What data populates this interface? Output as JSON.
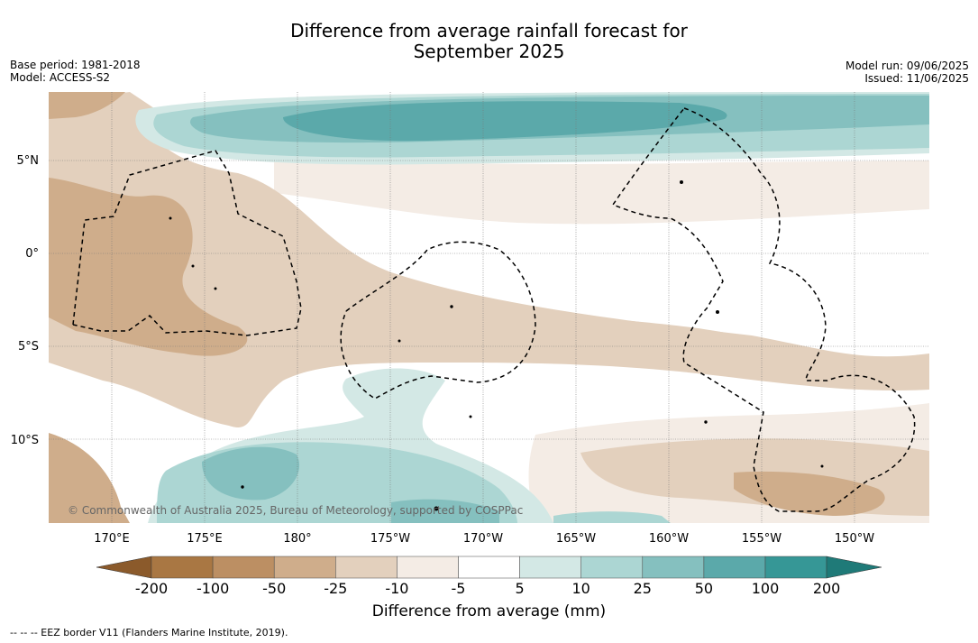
{
  "title": {
    "line1": "Difference from average rainfall forecast for",
    "line2": "September 2025"
  },
  "meta_left": {
    "base_period": "Base period: 1981-2018",
    "model": "Model: ACCESS-S2"
  },
  "meta_right": {
    "model_run": "Model run: 09/06/2025",
    "issued": "Issued: 11/06/2025"
  },
  "map": {
    "lat_labels": [
      "5°N",
      "0°",
      "5°S",
      "10°S"
    ],
    "lon_labels": [
      "170°E",
      "175°E",
      "180°",
      "175°W",
      "170°W",
      "165°W",
      "160°W",
      "155°W",
      "150°W"
    ],
    "copyright": "© Commonwealth of Australia 2025, Bureau of Meteorology, supported by COSPPac"
  },
  "colorbar": {
    "tick_labels": [
      "-200",
      "-100",
      "-50",
      "-25",
      "-10",
      "-5",
      "5",
      "10",
      "25",
      "50",
      "100",
      "200"
    ],
    "colors": [
      "#8b5a2b",
      "#a97743",
      "#bc8f63",
      "#cfad8b",
      "#e3d0bd",
      "#f4ece5",
      "#ffffff",
      "#d3e8e5",
      "#acd6d3",
      "#85c0bf",
      "#5ba9aa",
      "#369796",
      "#1f7a78"
    ],
    "title": "Difference from average (mm)"
  },
  "footer": "-- -- -- EEZ border V11 (Flanders Marine Institute, 2019)."
}
